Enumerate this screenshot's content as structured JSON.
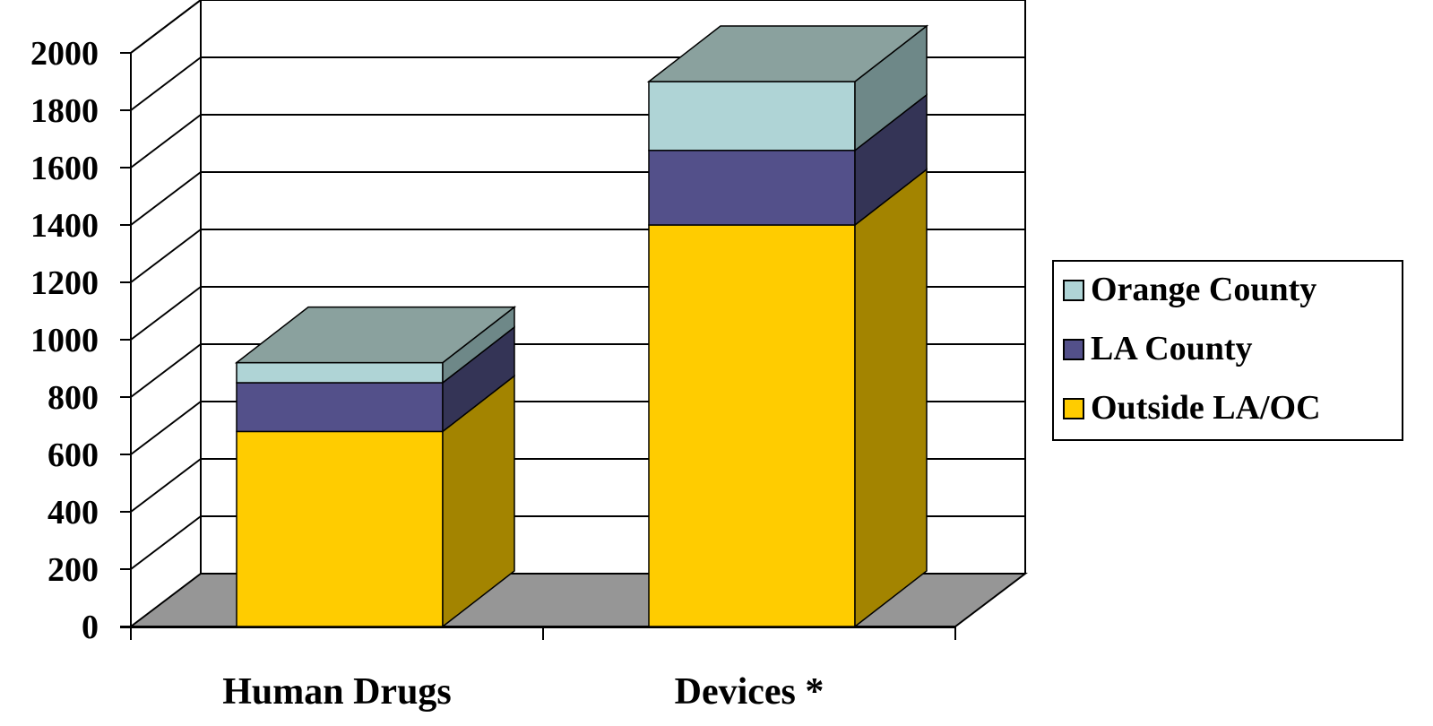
{
  "chart_data": {
    "type": "bar",
    "stacked": true,
    "three_d": true,
    "categories": [
      "Human Drugs",
      "Devices *"
    ],
    "series": [
      {
        "name": "Outside LA/OC",
        "values": [
          680,
          1400
        ],
        "color": "#FFCC00",
        "side_color": "#A38400",
        "top_color": "#8AA19E"
      },
      {
        "name": "LA County",
        "values": [
          170,
          260
        ],
        "color": "#53508A",
        "side_color": "#343456",
        "top_color": "#8AA19E"
      },
      {
        "name": "Orange County",
        "values": [
          70,
          240
        ],
        "color": "#AFD4D6",
        "side_color": "#6E8888",
        "top_color": "#8AA19E"
      }
    ],
    "ylim": [
      0,
      2000
    ],
    "yticks": [
      "0",
      "200",
      "400",
      "600",
      "800",
      "1000",
      "1200",
      "1400",
      "1600",
      "1800",
      "2000"
    ],
    "grid": true,
    "legend_position": "right",
    "legend_order": [
      "Orange County",
      "LA County",
      "Outside LA/OC"
    ],
    "floor_color": "#969696",
    "title": "",
    "xlabel": "",
    "ylabel": ""
  }
}
